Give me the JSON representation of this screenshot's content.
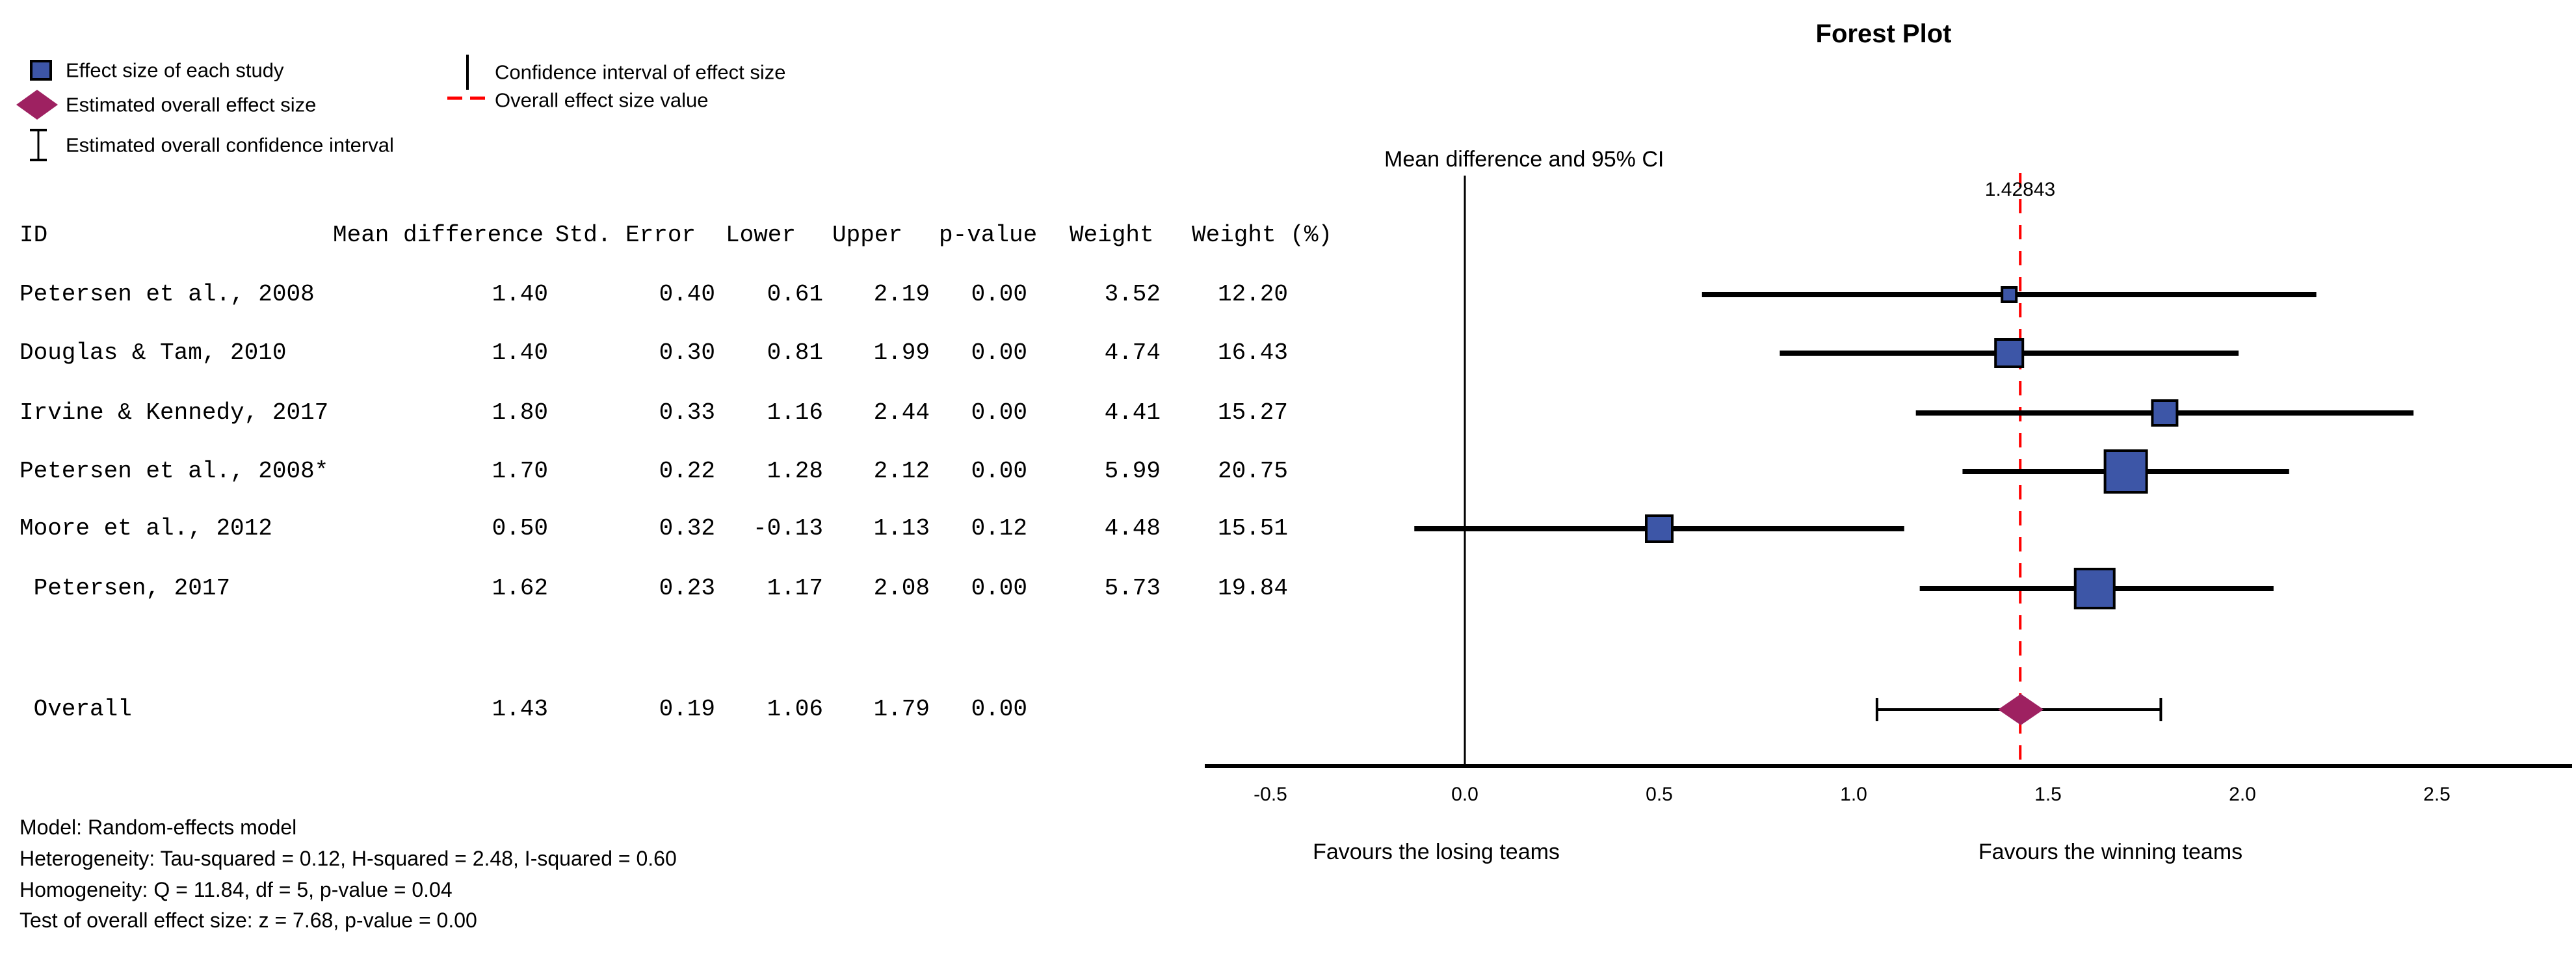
{
  "plot": {
    "title": "Forest Plot",
    "axis_note": "Mean difference and 95% CI",
    "overall_line_label": "1.42843",
    "favours_left": "Favours the losing teams",
    "favours_right": "Favours the winning teams"
  },
  "legend": {
    "items": [
      {
        "icon": "blue-square-icon",
        "label": "Effect size of each study"
      },
      {
        "icon": "maroon-diamond-icon",
        "label": "Estimated overall effect size"
      },
      {
        "icon": "error-bar-icon",
        "label": "Estimated overall confidence interval"
      },
      {
        "icon": "black-vertical-line-icon",
        "label": "Confidence interval of effect size"
      },
      {
        "icon": "red-dashed-line-icon",
        "label": "Overall effect size value"
      }
    ]
  },
  "table": {
    "headers": [
      "ID",
      "Mean difference",
      "Std. Error",
      "Lower",
      "Upper",
      "p-value",
      "Weight",
      "Weight (%)"
    ],
    "rows": [
      {
        "id": "Petersen et al., 2008",
        "cells": [
          "1.40",
          "0.40",
          "0.61",
          "2.19",
          "0.00",
          "3.52",
          "12.20"
        ]
      },
      {
        "id": "Douglas & Tam, 2010",
        "cells": [
          "1.40",
          "0.30",
          "0.81",
          "1.99",
          "0.00",
          "4.74",
          "16.43"
        ]
      },
      {
        "id": "Irvine & Kennedy, 2017",
        "cells": [
          "1.80",
          "0.33",
          "1.16",
          "2.44",
          "0.00",
          "4.41",
          "15.27"
        ]
      },
      {
        "id": "Petersen et al., 2008*",
        "cells": [
          "1.70",
          "0.22",
          "1.28",
          "2.12",
          "0.00",
          "5.99",
          "20.75"
        ]
      },
      {
        "id": "Moore et al., 2012",
        "cells": [
          "0.50",
          "0.32",
          "-0.13",
          "1.13",
          "0.12",
          "4.48",
          "15.51"
        ]
      },
      {
        "id": " Petersen, 2017",
        "cells": [
          "1.62",
          "0.23",
          "1.17",
          "2.08",
          "0.00",
          "5.73",
          "19.84"
        ]
      }
    ],
    "overall_row": {
      "id": " Overall",
      "cells": [
        "1.43",
        "0.19",
        "1.06",
        "1.79",
        "0.00",
        "",
        ""
      ]
    }
  },
  "footnotes": [
    "Model: Random-effects model",
    "Heterogeneity: Tau-squared = 0.12, H-squared = 2.48, I-squared = 0.60",
    "Homogeneity: Q = 11.84, df = 5, p-value = 0.04",
    "Test of overall effect size: z = 7.68, p-value = 0.00"
  ],
  "chart_data": {
    "type": "forest",
    "title": "Forest Plot",
    "axis_label": "Mean difference and 95% CI",
    "x_ticks": [
      -0.5,
      0.0,
      0.5,
      1.0,
      1.5,
      2.0,
      2.5
    ],
    "x_tick_labels": [
      "-0.5",
      "0.0",
      "0.5",
      "1.0",
      "1.5",
      "2.0",
      "2.5"
    ],
    "x_range": [
      -0.67,
      2.85
    ],
    "zero_line_value": 0.0,
    "overall_line_value": 1.42843,
    "studies": [
      {
        "id": "Petersen et al., 2008",
        "mean": 1.4,
        "lower": 0.61,
        "upper": 2.19,
        "weight": 3.52,
        "weight_pct": 12.2,
        "marker_size": 22
      },
      {
        "id": "Douglas & Tam, 2010",
        "mean": 1.4,
        "lower": 0.81,
        "upper": 1.99,
        "weight": 4.74,
        "weight_pct": 16.43,
        "marker_size": 42
      },
      {
        "id": "Irvine & Kennedy, 2017",
        "mean": 1.8,
        "lower": 1.16,
        "upper": 2.44,
        "weight": 4.41,
        "weight_pct": 15.27,
        "marker_size": 38
      },
      {
        "id": "Petersen et al., 2008*",
        "mean": 1.7,
        "lower": 1.28,
        "upper": 2.12,
        "weight": 5.99,
        "weight_pct": 20.75,
        "marker_size": 64
      },
      {
        "id": "Moore et al., 2012",
        "mean": 0.5,
        "lower": -0.13,
        "upper": 1.13,
        "weight": 4.48,
        "weight_pct": 15.51,
        "marker_size": 40
      },
      {
        "id": "Petersen, 2017",
        "mean": 1.62,
        "lower": 1.17,
        "upper": 2.08,
        "weight": 5.73,
        "weight_pct": 19.84,
        "marker_size": 60
      }
    ],
    "overall": {
      "id": "Overall",
      "mean": 1.43,
      "lower": 1.06,
      "upper": 1.79
    },
    "legend_position": "top-left",
    "grid": false,
    "colors": {
      "study_marker": "#3D56A7",
      "marker_border": "#000000",
      "overall_marker": "#9E2161",
      "ci_line": "#000000",
      "overall_effect_line": "#FF0000",
      "axis": "#000000",
      "text": "#000000"
    }
  }
}
